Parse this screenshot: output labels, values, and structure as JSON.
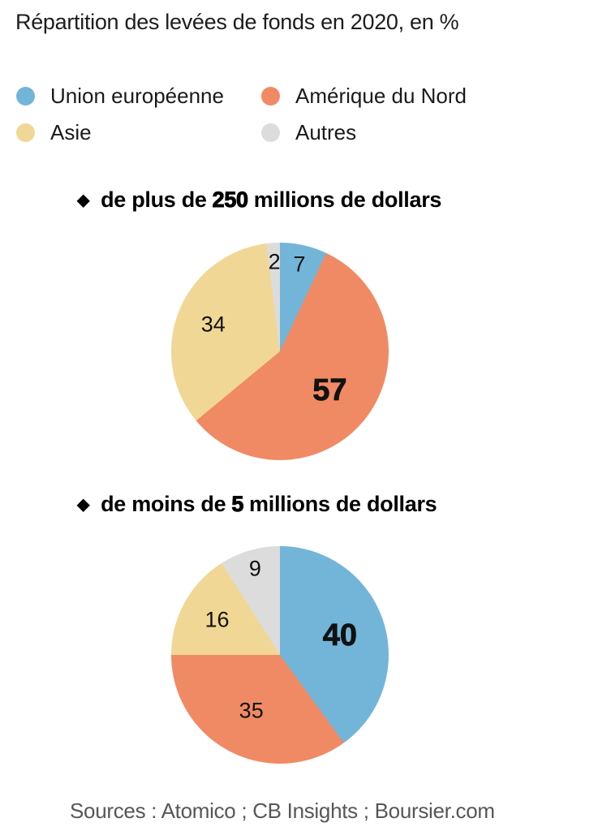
{
  "title": "Répartition des levées de fonds en 2020, en %",
  "legend": {
    "items": [
      {
        "label": "Union européenne",
        "color": "#72b5d8"
      },
      {
        "label": "Amérique du Nord",
        "color": "#f08a64"
      },
      {
        "label": "Asie",
        "color": "#f1d795"
      },
      {
        "label": "Autres",
        "color": "#dcdcdc"
      }
    ]
  },
  "sections": [
    {
      "bullet": "◆",
      "prefix": "de plus de",
      "number": "250",
      "suffix": "millions de dollars"
    },
    {
      "bullet": "◆",
      "prefix": "de moins de",
      "number": "5",
      "suffix": "millions de dollars"
    }
  ],
  "source": "Sources : Atomico ; CB Insights ; Boursier.com",
  "chart_data": [
    {
      "type": "pie",
      "title": "de plus de 250 millions de dollars",
      "unit": "%",
      "labels": [
        "Union européenne",
        "Amérique du Nord",
        "Asie",
        "Autres"
      ],
      "values": [
        7,
        57,
        34,
        2
      ],
      "clockwise_from_top": true,
      "emphasized_value": 57,
      "legend_position": "top"
    },
    {
      "type": "pie",
      "title": "de moins de 5 millions de dollars",
      "unit": "%",
      "labels": [
        "Union européenne",
        "Amérique du Nord",
        "Asie",
        "Autres"
      ],
      "values": [
        40,
        35,
        16,
        9
      ],
      "clockwise_from_top": true,
      "emphasized_value": 40,
      "legend_position": "top"
    }
  ]
}
